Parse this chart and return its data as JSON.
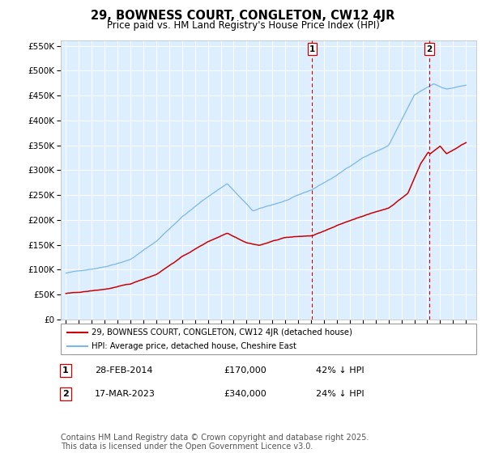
{
  "title": "29, BOWNESS COURT, CONGLETON, CW12 4JR",
  "subtitle": "Price paid vs. HM Land Registry's House Price Index (HPI)",
  "hpi_color": "#7ab8e8",
  "price_color": "#cc0000",
  "vline_color": "#cc0000",
  "background_color": "#ffffff",
  "plot_bg_color": "#ddeeff",
  "grid_color": "#ffffff",
  "ylim": [
    0,
    560000
  ],
  "ytick_step": 50000,
  "legend_label_price": "29, BOWNESS COURT, CONGLETON, CW12 4JR (detached house)",
  "legend_label_hpi": "HPI: Average price, detached house, Cheshire East",
  "transaction1_date": "28-FEB-2014",
  "transaction1_price": 170000,
  "transaction1_pct": "42% ↓ HPI",
  "transaction1_label": "1",
  "transaction1_year": 2014.083,
  "transaction2_date": "17-MAR-2023",
  "transaction2_price": 340000,
  "transaction2_pct": "24% ↓ HPI",
  "transaction2_label": "2",
  "transaction2_year": 2023.167,
  "footer": "Contains HM Land Registry data © Crown copyright and database right 2025.\nThis data is licensed under the Open Government Licence v3.0.",
  "footnote_fontsize": 7,
  "title_fontsize": 10.5,
  "subtitle_fontsize": 8.5,
  "start_year": 1995,
  "end_year": 2026
}
